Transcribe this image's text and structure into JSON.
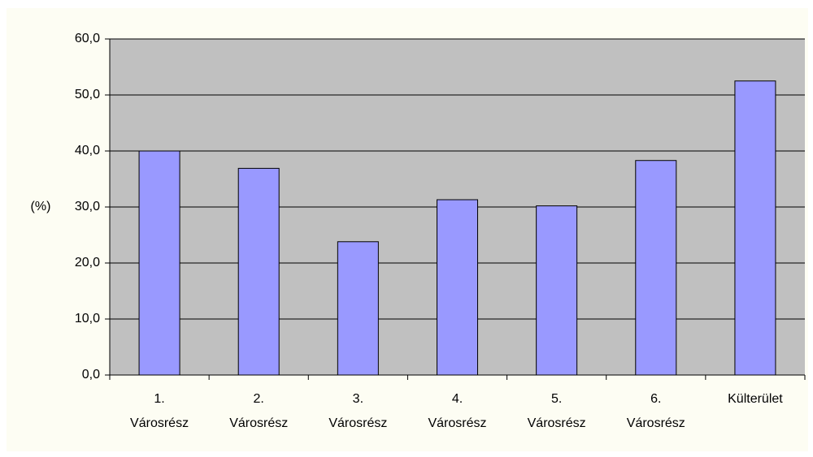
{
  "chart_data": {
    "type": "bar",
    "categories": [
      "1. Városrész",
      "2. Városrész",
      "3. Városrész",
      "4. Városrész",
      "5. Városrész",
      "6. Városrész",
      "Külterület"
    ],
    "values": [
      40.0,
      36.9,
      23.8,
      31.3,
      30.2,
      38.3,
      52.5
    ],
    "color": "#9999ff",
    "y_label": "(%)",
    "ylim": [
      0,
      60
    ],
    "yticks": [
      {
        "value": 0,
        "label": "0,0"
      },
      {
        "value": 10,
        "label": "10,0"
      },
      {
        "value": 20,
        "label": "20,0"
      },
      {
        "value": 30,
        "label": "30,0"
      },
      {
        "value": 40,
        "label": "40,0"
      },
      {
        "value": 50,
        "label": "50,0"
      },
      {
        "value": 60,
        "label": "60,0"
      }
    ],
    "grid": true
  }
}
